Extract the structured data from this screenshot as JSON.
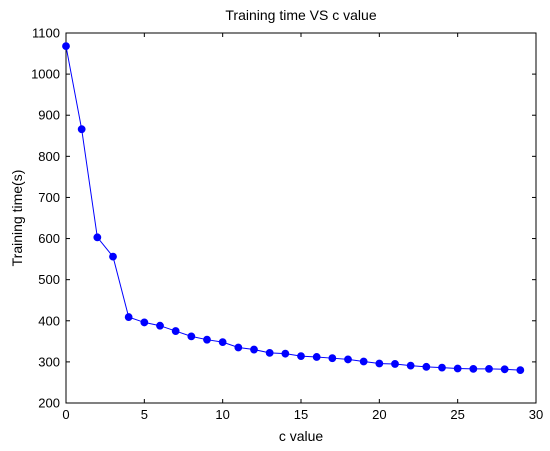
{
  "chart_data": {
    "type": "line",
    "title": "Training time VS c value",
    "xlabel": "c value",
    "ylabel": "Training time(s)",
    "xlim": [
      0,
      30
    ],
    "ylim": [
      200,
      1100
    ],
    "xticks": [
      0,
      5,
      10,
      15,
      20,
      25,
      30
    ],
    "yticks": [
      200,
      300,
      400,
      500,
      600,
      700,
      800,
      900,
      1000,
      1100
    ],
    "grid": false,
    "legend": "none",
    "series": [
      {
        "color": "#0000ff",
        "marker": "filled-circle",
        "x": [
          0,
          1,
          2,
          3,
          4,
          5,
          6,
          7,
          8,
          9,
          10,
          11,
          12,
          13,
          14,
          15,
          16,
          17,
          18,
          19,
          20,
          21,
          22,
          23,
          24,
          25,
          26,
          27,
          28,
          29
        ],
        "y": [
          1068,
          866,
          603,
          556,
          409,
          396,
          388,
          375,
          362,
          354,
          348,
          335,
          330,
          322,
          320,
          314,
          312,
          309,
          306,
          301,
          296,
          295,
          291,
          288,
          286,
          284,
          283,
          283,
          282,
          280
        ]
      }
    ]
  }
}
